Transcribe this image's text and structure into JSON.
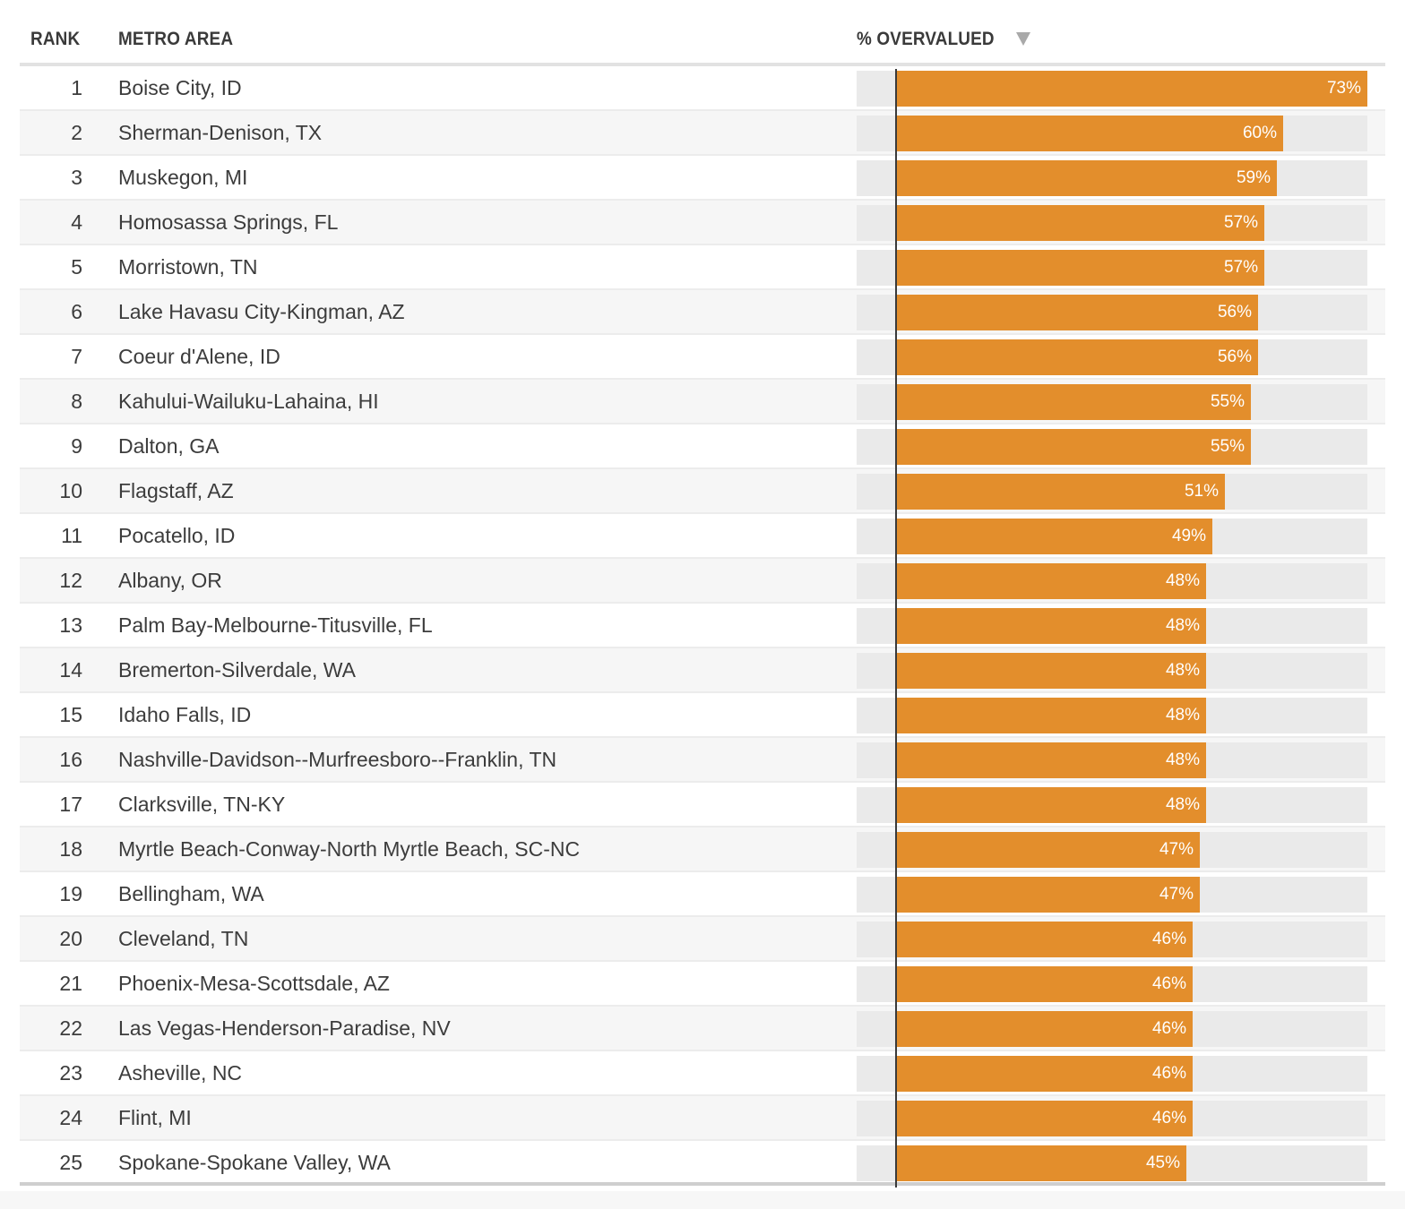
{
  "chart_data": {
    "type": "table",
    "columns": [
      "RANK",
      "METRO AREA",
      "% OVERVALUED"
    ],
    "sort_indicator": "descending",
    "value_max": 73,
    "colors": {
      "bar": "#e38e2c",
      "track": "#eaeaea",
      "axis": "#3a3a3a"
    },
    "rows": [
      {
        "rank": "1",
        "metro": "Boise City, ID",
        "value": 73,
        "label": "73%"
      },
      {
        "rank": "2",
        "metro": "Sherman-Denison, TX",
        "value": 60,
        "label": "60%"
      },
      {
        "rank": "3",
        "metro": "Muskegon, MI",
        "value": 59,
        "label": "59%"
      },
      {
        "rank": "4",
        "metro": "Homosassa Springs, FL",
        "value": 57,
        "label": "57%"
      },
      {
        "rank": "5",
        "metro": "Morristown, TN",
        "value": 57,
        "label": "57%"
      },
      {
        "rank": "6",
        "metro": "Lake Havasu City-Kingman, AZ",
        "value": 56,
        "label": "56%"
      },
      {
        "rank": "7",
        "metro": "Coeur d'Alene, ID",
        "value": 56,
        "label": "56%"
      },
      {
        "rank": "8",
        "metro": "Kahului-Wailuku-Lahaina, HI",
        "value": 55,
        "label": "55%"
      },
      {
        "rank": "9",
        "metro": "Dalton, GA",
        "value": 55,
        "label": "55%"
      },
      {
        "rank": "10",
        "metro": "Flagstaff, AZ",
        "value": 51,
        "label": "51%"
      },
      {
        "rank": "11",
        "metro": "Pocatello, ID",
        "value": 49,
        "label": "49%"
      },
      {
        "rank": "12",
        "metro": "Albany, OR",
        "value": 48,
        "label": "48%"
      },
      {
        "rank": "13",
        "metro": "Palm Bay-Melbourne-Titusville, FL",
        "value": 48,
        "label": "48%"
      },
      {
        "rank": "14",
        "metro": "Bremerton-Silverdale, WA",
        "value": 48,
        "label": "48%"
      },
      {
        "rank": "15",
        "metro": "Idaho Falls, ID",
        "value": 48,
        "label": "48%"
      },
      {
        "rank": "16",
        "metro": "Nashville-Davidson--Murfreesboro--Franklin, TN",
        "value": 48,
        "label": "48%"
      },
      {
        "rank": "17",
        "metro": "Clarksville, TN-KY",
        "value": 48,
        "label": "48%"
      },
      {
        "rank": "18",
        "metro": "Myrtle Beach-Conway-North Myrtle Beach, SC-NC",
        "value": 47,
        "label": "47%"
      },
      {
        "rank": "19",
        "metro": "Bellingham, WA",
        "value": 47,
        "label": "47%"
      },
      {
        "rank": "20",
        "metro": "Cleveland, TN",
        "value": 46,
        "label": "46%"
      },
      {
        "rank": "21",
        "metro": "Phoenix-Mesa-Scottsdale, AZ",
        "value": 46,
        "label": "46%"
      },
      {
        "rank": "22",
        "metro": "Las Vegas-Henderson-Paradise, NV",
        "value": 46,
        "label": "46%"
      },
      {
        "rank": "23",
        "metro": "Asheville, NC",
        "value": 46,
        "label": "46%"
      },
      {
        "rank": "24",
        "metro": "Flint, MI",
        "value": 46,
        "label": "46%"
      },
      {
        "rank": "25",
        "metro": "Spokane-Spokane Valley, WA",
        "value": 45,
        "label": "45%"
      }
    ]
  }
}
